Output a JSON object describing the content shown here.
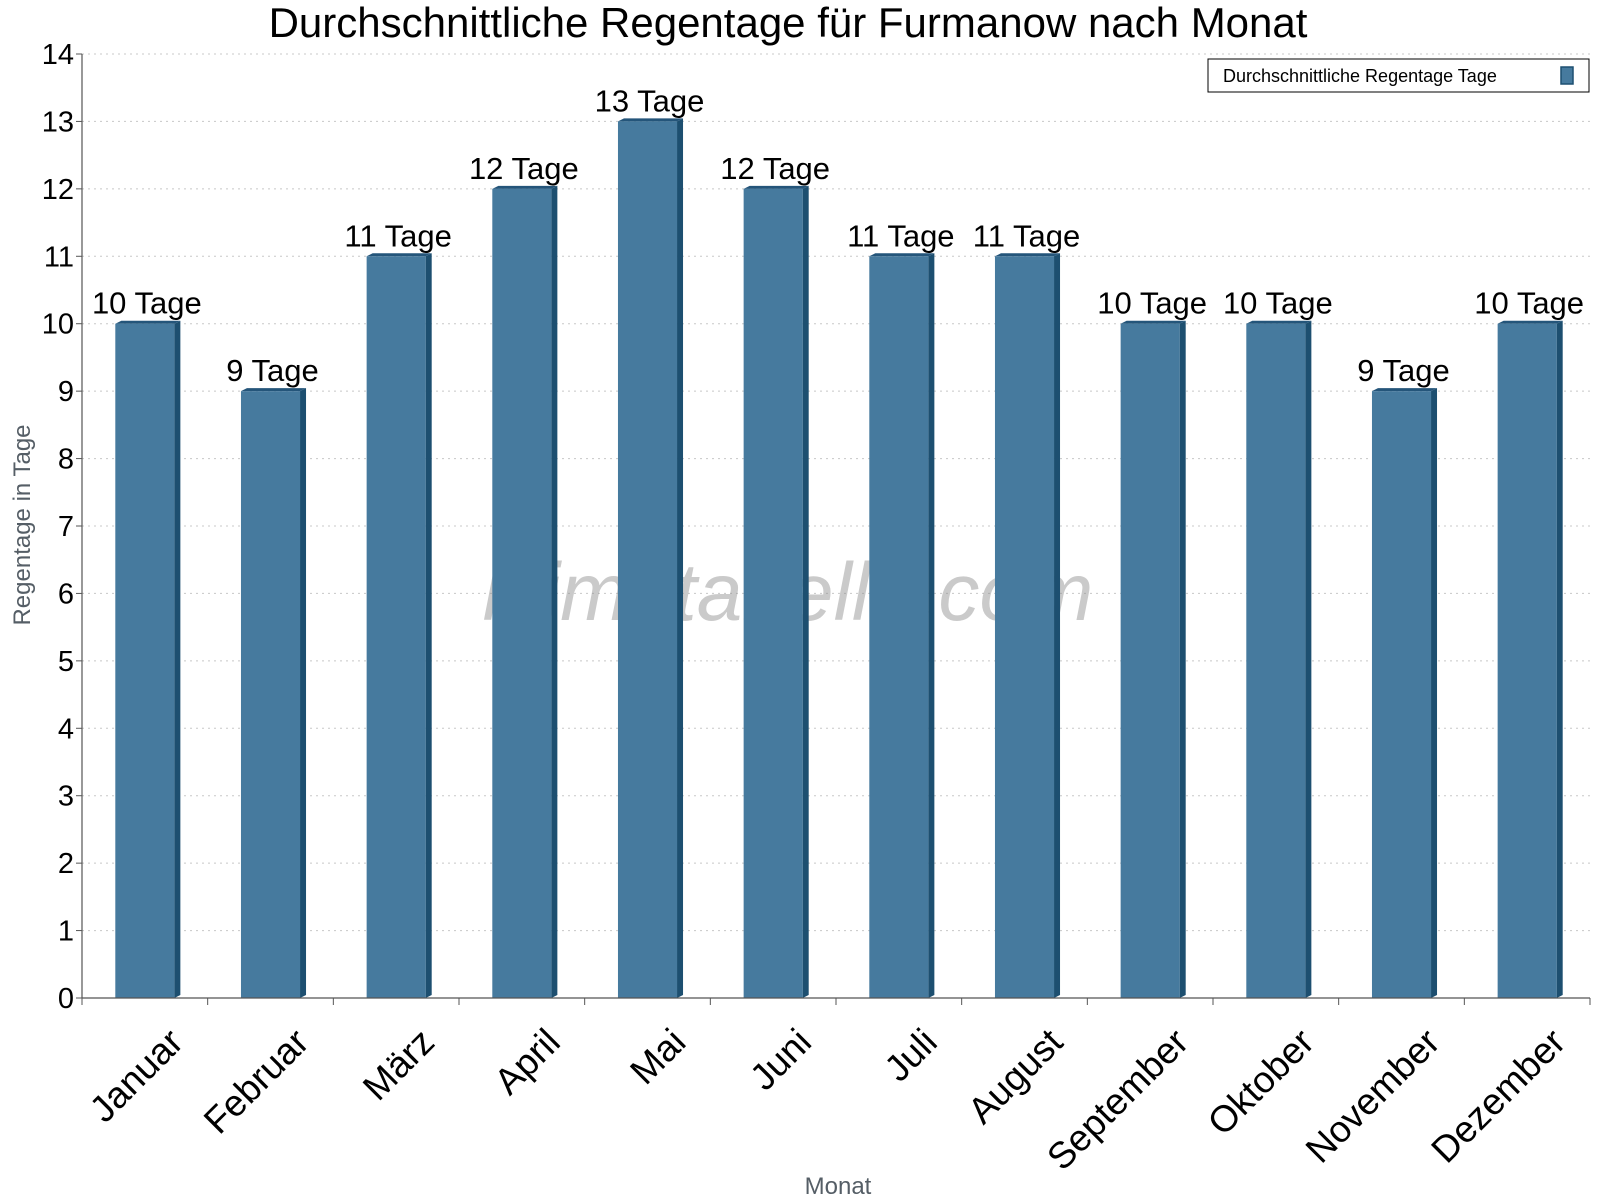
{
  "chart_data": {
    "type": "bar",
    "title": "Durchschnittliche Regentage für Furmanow nach Monat",
    "xlabel": "Monat",
    "ylabel": "Regentage in Tage",
    "ylim": [
      0,
      14
    ],
    "yticks": [
      0,
      1,
      2,
      3,
      4,
      5,
      6,
      7,
      8,
      9,
      10,
      11,
      12,
      13,
      14
    ],
    "grid": true,
    "legend_position": "top-right",
    "categories": [
      "Januar",
      "Februar",
      "März",
      "April",
      "Mai",
      "Juni",
      "Juli",
      "August",
      "September",
      "Oktober",
      "November",
      "Dezember"
    ],
    "series": [
      {
        "name": "Durchschnittliche Regentage Tage",
        "values": [
          10,
          9,
          11,
          12,
          13,
          12,
          11,
          11,
          10,
          10,
          9,
          10
        ],
        "data_labels": [
          "10 Tage",
          "9 Tage",
          "11 Tage",
          "12 Tage",
          "13 Tage",
          "12 Tage",
          "11 Tage",
          "11 Tage",
          "10 Tage",
          "10 Tage",
          "9 Tage",
          "10 Tage"
        ]
      }
    ],
    "colors": {
      "bar": "#467a9e",
      "bar_side": "#1d4f70",
      "bar_top": "#24557a"
    },
    "watermark": "klimatabelle.com"
  }
}
